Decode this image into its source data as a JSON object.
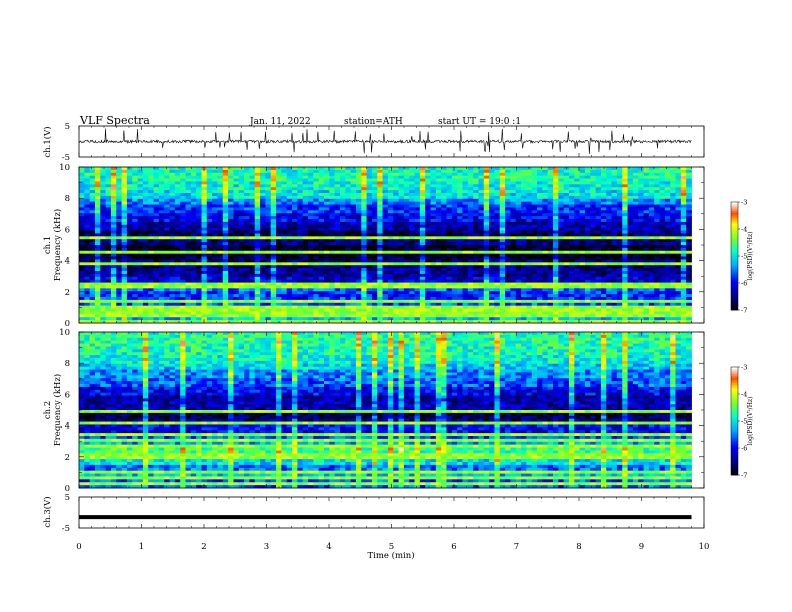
{
  "header": {
    "title": "VLF Spectra",
    "date": "Jan. 11, 2022",
    "station": "station=ATH",
    "start_ut": "start UT =  19:0  :1"
  },
  "axes": {
    "ch1_waveform_label": "ch.1(V)",
    "ch1_spec_label": "ch.1",
    "ch2_spec_label": "ch.2",
    "freq_label": "Frequency (kHz)",
    "ch3_waveform_label": "ch.3(V)",
    "time_label": "Time (min)",
    "waveform_ticks": [
      "5",
      "-5"
    ],
    "freq_ticks": [
      "0",
      "2",
      "4",
      "6",
      "8",
      "10"
    ],
    "time_ticks": [
      "0",
      "1",
      "2",
      "3",
      "4",
      "5",
      "6",
      "7",
      "8",
      "9",
      "10"
    ]
  },
  "colorbar": {
    "label": "log(PSD)(V²/Hz)",
    "ticks": [
      "-3",
      "-4",
      "-5",
      "-6",
      "-7"
    ],
    "range": [
      -7,
      -3
    ]
  },
  "chart_data": [
    {
      "type": "line",
      "panel": "ch.1 waveform",
      "ylabel": "ch.1(V)",
      "ylim": [
        -5,
        5
      ],
      "xlim": [
        0,
        10
      ],
      "baseline": 0,
      "series_color": "#000000",
      "note_spikes": "frequent short spikes up to about ±3 V"
    },
    {
      "type": "heatmap",
      "panel": "ch.1 spectrogram",
      "xlabel": "Time (min)",
      "ylabel": "Frequency (kHz)",
      "xlim": [
        0,
        10
      ],
      "data_extent_x": [
        0,
        9.8
      ],
      "ylim": [
        0,
        10
      ],
      "color_scale": "jet",
      "zlim": [
        -7,
        -3
      ],
      "background_profile": [
        {
          "f": 0.25,
          "z": -5.2
        },
        {
          "f": 0.75,
          "z": -4.6
        },
        {
          "f": 1.25,
          "z": -5.6
        },
        {
          "f": 1.75,
          "z": -5.8
        },
        {
          "f": 2.25,
          "z": -5.5
        },
        {
          "f": 2.75,
          "z": -6.2
        },
        {
          "f": 3.25,
          "z": -6.4
        },
        {
          "f": 3.75,
          "z": -6.6
        },
        {
          "f": 4.25,
          "z": -6.9
        },
        {
          "f": 4.75,
          "z": -6.9
        },
        {
          "f": 5.25,
          "z": -6.5
        },
        {
          "f": 5.75,
          "z": -6.6
        },
        {
          "f": 6.25,
          "z": -6.3
        },
        {
          "f": 6.75,
          "z": -6.0
        },
        {
          "f": 7.25,
          "z": -5.8
        },
        {
          "f": 7.75,
          "z": -5.4
        },
        {
          "f": 8.25,
          "z": -5.0
        },
        {
          "f": 8.75,
          "z": -4.9
        },
        {
          "f": 9.25,
          "z": -4.8
        },
        {
          "f": 9.75,
          "z": -4.8
        }
      ],
      "lines_khz": [
        0.05,
        0.3,
        0.55,
        0.75,
        1.0,
        1.35,
        2.3,
        2.5,
        3.75,
        4.6,
        5.5
      ],
      "seed": 11
    },
    {
      "type": "heatmap",
      "panel": "ch.2 spectrogram",
      "xlabel": "Time (min)",
      "ylabel": "Frequency (kHz)",
      "xlim": [
        0,
        10
      ],
      "data_extent_x": [
        0,
        9.8
      ],
      "ylim": [
        0,
        10
      ],
      "color_scale": "jet",
      "zlim": [
        -7,
        -3
      ],
      "background_profile": [
        {
          "f": 0.25,
          "z": -5.6
        },
        {
          "f": 0.75,
          "z": -5.2
        },
        {
          "f": 1.25,
          "z": -5.5
        },
        {
          "f": 1.75,
          "z": -5.0
        },
        {
          "f": 2.25,
          "z": -4.6
        },
        {
          "f": 2.75,
          "z": -5.3
        },
        {
          "f": 3.25,
          "z": -5.6
        },
        {
          "f": 3.75,
          "z": -6.0
        },
        {
          "f": 4.25,
          "z": -6.5
        },
        {
          "f": 4.75,
          "z": -6.7
        },
        {
          "f": 5.25,
          "z": -6.3
        },
        {
          "f": 5.75,
          "z": -6.4
        },
        {
          "f": 6.25,
          "z": -6.0
        },
        {
          "f": 6.75,
          "z": -5.6
        },
        {
          "f": 7.25,
          "z": -5.4
        },
        {
          "f": 7.75,
          "z": -5.1
        },
        {
          "f": 8.25,
          "z": -4.9
        },
        {
          "f": 8.75,
          "z": -4.8
        },
        {
          "f": 9.25,
          "z": -4.7
        },
        {
          "f": 9.75,
          "z": -4.7
        }
      ],
      "lines_khz": [
        0.1,
        0.5,
        1.0,
        1.8,
        2.1,
        2.6,
        3.0,
        3.4,
        4.1,
        4.9
      ],
      "seed": 23
    },
    {
      "type": "line",
      "panel": "ch.3 waveform",
      "ylabel": "ch.3(V)",
      "ylim": [
        -5,
        5
      ],
      "xlim": [
        0,
        10
      ],
      "data_extent_x": [
        0,
        9.8
      ],
      "baseline": -1.5,
      "series_color": "#000000"
    }
  ]
}
